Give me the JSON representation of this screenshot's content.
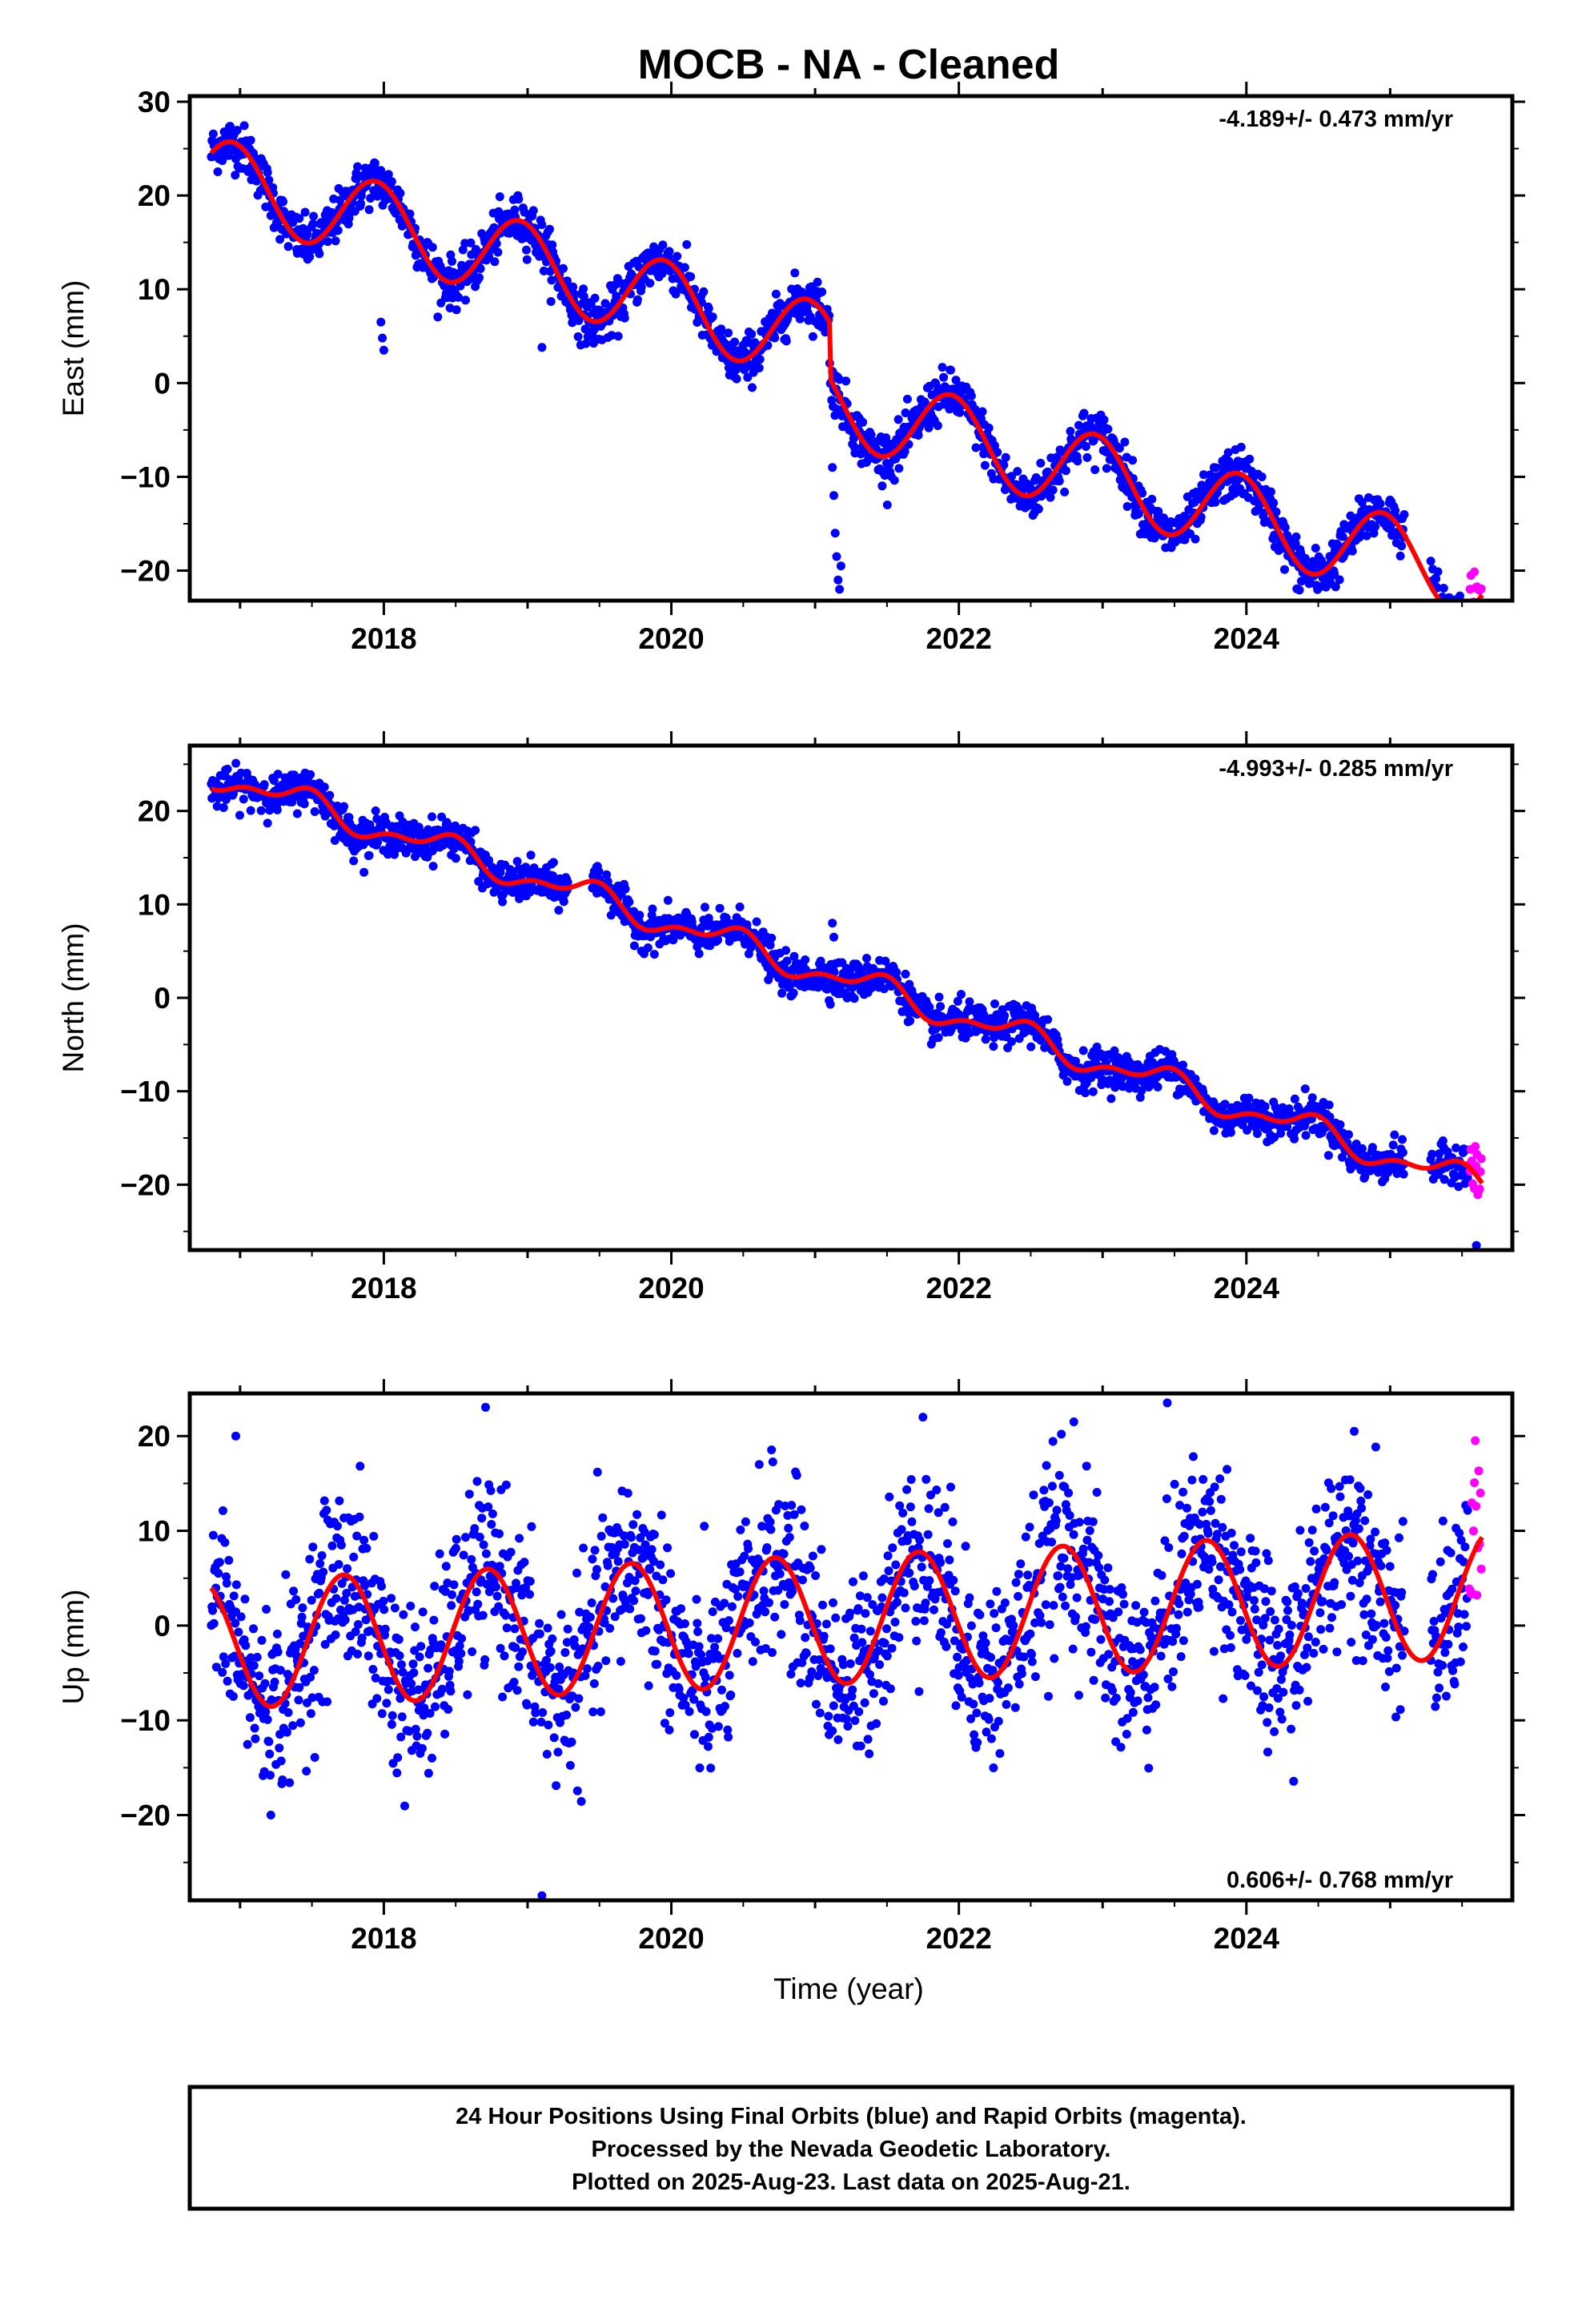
{
  "chart_data": {
    "type": "scatter",
    "title": "MOCB  - NA - Cleaned",
    "xlabel": "Time (year)",
    "xlim": [
      2016.65,
      2025.85
    ],
    "xticks": [
      2018,
      2020,
      2022,
      2024
    ],
    "legend": "none",
    "grid": false,
    "colors": {
      "final": "#0000ff",
      "rapid": "#ff00ff",
      "model": "#ff0000",
      "frame": "#000000"
    },
    "panels": [
      {
        "name": "east",
        "ylabel": "East (mm)",
        "ylim": [
          -23.2,
          30.6
        ],
        "yticks": [
          30,
          20,
          10,
          0,
          -10,
          -20
        ],
        "rate": "-4.189+/- 0.473 mm/yr",
        "rate_position": "top-right",
        "trend": {
          "value_at_2016_8": 22.0,
          "slope_mm_per_yr": -4.189,
          "annual_amp": 4.3,
          "peak_year_fraction": 0.95,
          "semiannual_amp": 0.0
        },
        "scatter_sd": 1.3,
        "steps": [
          {
            "year": 2021.1,
            "offset": -6.0
          }
        ],
        "data_years": [
          2016.8,
          2025.54
        ],
        "rapid_years": [
          2025.55,
          2025.64
        ],
        "outliers": [
          [
            2017.98,
            6.5
          ],
          [
            2017.99,
            4.8
          ],
          [
            2018.0,
            3.5
          ],
          [
            2019.1,
            3.8
          ],
          [
            2021.12,
            -9.0
          ],
          [
            2021.13,
            -12.0
          ],
          [
            2021.14,
            -16.0
          ],
          [
            2021.15,
            -18.5
          ],
          [
            2021.16,
            -21.0
          ],
          [
            2021.17,
            -22.0
          ],
          [
            2021.18,
            -19.5
          ]
        ]
      },
      {
        "name": "north",
        "ylabel": "North (mm)",
        "ylim": [
          -27.0,
          27.0
        ],
        "yticks": [
          20,
          10,
          0,
          -10,
          -20
        ],
        "rate": "-4.993+/- 0.285 mm/yr",
        "rate_position": "top-right",
        "trend": {
          "value_at_2016_8": 24.0,
          "slope_mm_per_yr": -4.993,
          "annual_amp": 1.3,
          "peak_year_fraction": 0.42,
          "semiannual_amp": 0.7
        },
        "scatter_sd": 1.0,
        "steps": [],
        "data_years": [
          2016.8,
          2025.54
        ],
        "rapid_years": [
          2025.55,
          2025.64
        ],
        "outliers": [
          [
            2021.12,
            8.0
          ],
          [
            2021.13,
            6.5
          ],
          [
            2019.48,
            14.0
          ],
          [
            2025.6,
            -26.5
          ]
        ]
      },
      {
        "name": "up",
        "ylabel": "Up (mm)",
        "ylim": [
          -29.0,
          24.5
        ],
        "yticks": [
          20,
          10,
          0,
          -10,
          -20
        ],
        "rate": "0.606+/- 0.768 mm/yr",
        "rate_position": "bottom-right",
        "trend": {
          "value_at_2016_8": -2.0,
          "slope_mm_per_yr": 0.606,
          "annual_amp": 6.8,
          "peak_year_fraction": 0.72,
          "semiannual_amp": 0.0
        },
        "scatter_sd": 4.8,
        "steps": [],
        "data_years": [
          2016.8,
          2025.54
        ],
        "rapid_years": [
          2025.55,
          2025.64
        ],
        "outliers": [
          [
            2019.1,
            -28.5
          ],
          [
            2021.75,
            22.0
          ],
          [
            2022.8,
            21.5
          ],
          [
            2023.45,
            23.5
          ],
          [
            2024.75,
            20.5
          ],
          [
            2016.97,
            20.0
          ]
        ]
      }
    ]
  },
  "footer": {
    "line1": "24 Hour Positions Using Final Orbits (blue) and Rapid Orbits (magenta).",
    "line2": "Processed by the Nevada Geodetic Laboratory.",
    "line3": "Plotted on 2025-Aug-23. Last data on 2025-Aug-21."
  }
}
